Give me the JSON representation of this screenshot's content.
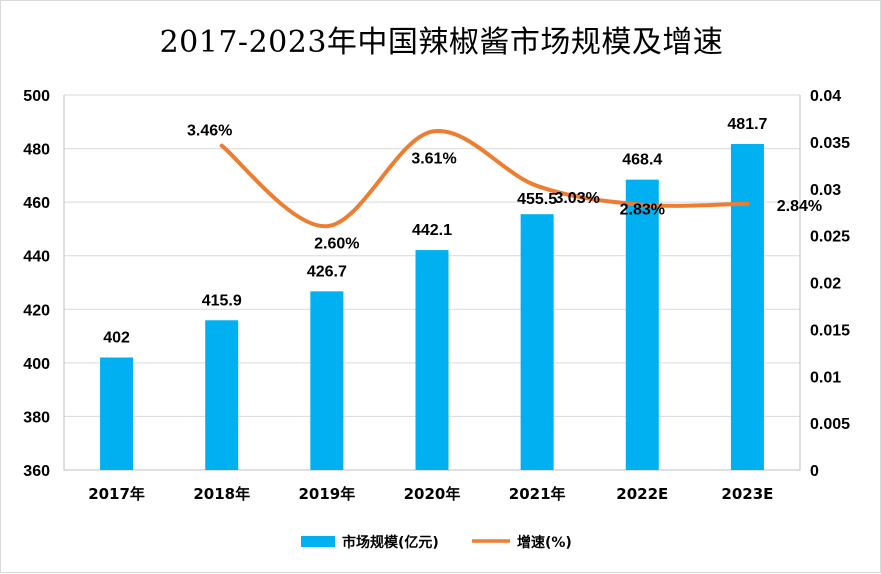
{
  "chart_data": {
    "type": "bar+line",
    "title": "2017-2023年中国辣椒酱市场规模及增速",
    "categories": [
      "2017年",
      "2018年",
      "2019年",
      "2020年",
      "2021年",
      "2022E",
      "2023E"
    ],
    "series": [
      {
        "name": "市场规模(亿元)",
        "type": "bar",
        "axis": "left",
        "color": "#00b0f0",
        "values": [
          402,
          415.9,
          426.7,
          442.1,
          455.5,
          468.4,
          481.7
        ],
        "labels": [
          "402",
          "415.9",
          "426.7",
          "442.1",
          "455.5",
          "468.4",
          "481.7"
        ]
      },
      {
        "name": "增速(%)",
        "type": "line",
        "axis": "right",
        "color": "#ed7d31",
        "values": [
          null,
          0.0346,
          0.026,
          0.0361,
          0.0303,
          0.0283,
          0.0284
        ],
        "labels": [
          null,
          "3.46%",
          "2.60%",
          "3.61%",
          "3.03%",
          "2.83%",
          "2.84%"
        ]
      }
    ],
    "y_left": {
      "min": 360,
      "max": 500,
      "ticks": [
        "500",
        "480",
        "460",
        "440",
        "420",
        "400",
        "380",
        "360"
      ]
    },
    "y_right": {
      "min": 0,
      "max": 0.04,
      "ticks": [
        "0.04",
        "0.035",
        "0.03",
        "0.025",
        "0.02",
        "0.015",
        "0.01",
        "0.005",
        "0"
      ]
    },
    "grid": true,
    "legend": "bottom"
  }
}
